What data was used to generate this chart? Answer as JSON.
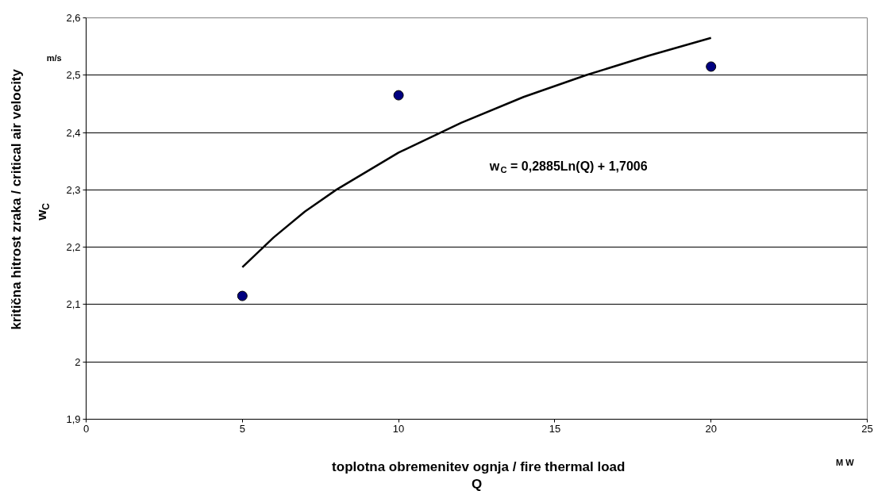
{
  "chart_data": {
    "type": "scatter",
    "xlabel": "toplotna obremenitev ognja / fire thermal load\nQ",
    "ylabel": "kritična hitrost zraka / critical air velocity\nw$_{C}$",
    "annotations": [
      "m/s",
      "M W",
      "w$_{C}$ = 0,2885Ln(Q) + 1,7006"
    ],
    "x": [
      5,
      10,
      20
    ],
    "series": [
      {
        "type": "scatter",
        "color": "#000080",
        "values": [
          2.115,
          2.465,
          2.515
        ],
        "marker": "circle"
      },
      {
        "type": "line",
        "color": "#000000",
        "x": [
          5,
          6,
          7,
          8,
          10,
          12,
          14,
          16,
          18,
          20
        ],
        "values": [
          2.165,
          2.217,
          2.262,
          2.3,
          2.365,
          2.417,
          2.462,
          2.5,
          2.534,
          2.565
        ],
        "line_style": "solid"
      }
    ],
    "xlim": [
      0,
      25
    ],
    "xticks": [
      0,
      5,
      10,
      15,
      20,
      25
    ],
    "ylim": [
      1.9,
      2.6
    ],
    "yticks": [
      {
        "value": 1.9,
        "label": "1,9"
      },
      {
        "value": 2.0,
        "label": "2"
      },
      {
        "value": 2.1,
        "label": "2,1"
      },
      {
        "value": 2.2,
        "label": "2,2"
      },
      {
        "value": 2.3,
        "label": "2,3"
      },
      {
        "value": 2.4,
        "label": "2,4"
      },
      {
        "value": 2.5,
        "label": "2,5"
      },
      {
        "value": 2.6,
        "label": "2,6"
      }
    ],
    "grid": "y"
  }
}
